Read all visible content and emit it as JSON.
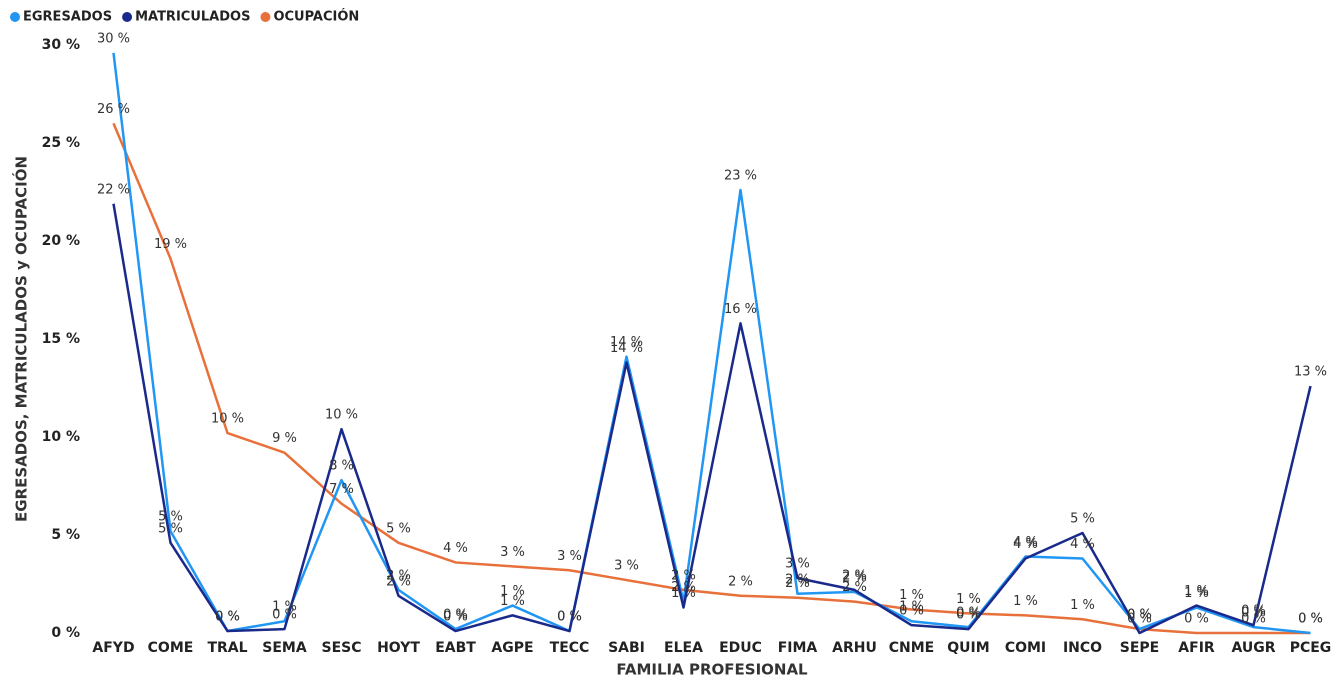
{
  "chart_data": {
    "type": "line",
    "x_label": "FAMILIA PROFESIONAL",
    "y_label": "EGRESADOS, MATRICULADOS y OCUPACIÓN",
    "categories": [
      "AFYD",
      "COME",
      "TRAL",
      "SEMA",
      "SESC",
      "HOYT",
      "EABT",
      "AGPE",
      "TECC",
      "SABI",
      "ELEA",
      "EDUC",
      "FIMA",
      "ARHU",
      "CNME",
      "QUIM",
      "COMI",
      "INCO",
      "SEPE",
      "AFIR",
      "AUGR",
      "PCEG"
    ],
    "series": [
      {
        "name": "EGRESADOS",
        "color": "#2196f3",
        "values": [
          29.6,
          5.2,
          0.1,
          0.6,
          7.8,
          2.2,
          0.2,
          1.4,
          0.1,
          14.1,
          1.6,
          22.6,
          2.0,
          2.1,
          0.6,
          0.3,
          3.9,
          3.8,
          0.2,
          1.3,
          0.3,
          0.0
        ],
        "value_labels": [
          "30 %",
          "5 %",
          "0 %",
          "1 %",
          "8 %",
          "2 %",
          "0 %",
          "1 %",
          "0 %",
          "14 %",
          "2 %",
          "23 %",
          "2 %",
          "2 %",
          "1 %",
          "0 %",
          "4 %",
          "4 %",
          "0 %",
          "1 %",
          "0 %",
          "0 %"
        ]
      },
      {
        "name": "MATRICULADOS",
        "color": "#1a2a8c",
        "values": [
          21.9,
          4.6,
          0.1,
          0.2,
          10.4,
          1.9,
          0.1,
          0.9,
          0.1,
          13.8,
          1.3,
          15.8,
          2.8,
          2.2,
          0.4,
          0.2,
          3.8,
          5.1,
          0.0,
          1.4,
          0.4,
          12.6
        ],
        "value_labels": [
          "22 %",
          "5 %",
          "0 %",
          "0 %",
          "10 %",
          "2 %",
          "0 %",
          "1 %",
          "0 %",
          "14 %",
          "1 %",
          "16 %",
          "3 %",
          "2 %",
          "0 %",
          "0 %",
          "4 %",
          "5 %",
          "0 %",
          "1 %",
          "0 %",
          "13 %"
        ]
      },
      {
        "name": "OCUPACIÓN",
        "color": "#e8703a",
        "values": [
          26.0,
          19.1,
          10.2,
          9.2,
          6.6,
          4.6,
          3.6,
          3.4,
          3.2,
          2.7,
          2.2,
          1.9,
          1.8,
          1.6,
          1.2,
          1.0,
          0.9,
          0.7,
          0.2,
          0.0,
          0.0,
          0.0
        ],
        "value_labels": [
          "26 %",
          "19 %",
          "10 %",
          "9 %",
          "7 %",
          "5 %",
          "4 %",
          "3 %",
          "3 %",
          "3 %",
          "2 %",
          "2 %",
          "2 %",
          "2 %",
          "1 %",
          "1 %",
          "1 %",
          "1 %",
          "0 %",
          "0 %",
          "0 %",
          "0 %"
        ]
      }
    ],
    "ylim": [
      0,
      30
    ],
    "yticks": [
      {
        "value": 0,
        "label": "0 %"
      },
      {
        "value": 5,
        "label": "5 %"
      },
      {
        "value": 10,
        "label": "10 %"
      },
      {
        "value": 15,
        "label": "15 %"
      },
      {
        "value": 20,
        "label": "20 %"
      },
      {
        "value": 25,
        "label": "25 %"
      },
      {
        "value": 30,
        "label": "30 %"
      }
    ],
    "legend": "top-left"
  }
}
